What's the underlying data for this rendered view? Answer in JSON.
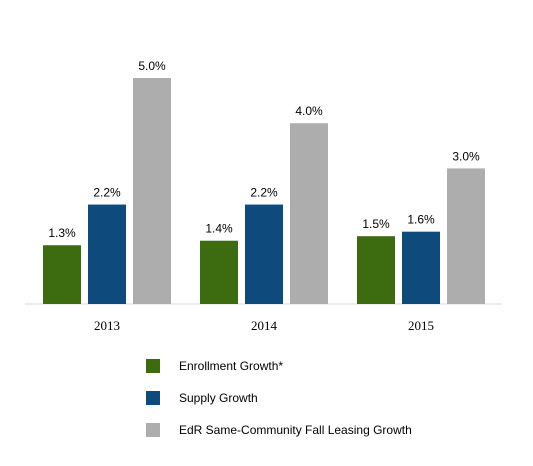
{
  "chart_data": {
    "type": "bar",
    "categories": [
      "2013",
      "2014",
      "2015"
    ],
    "series": [
      {
        "name": "Enrollment Growth*",
        "values": [
          1.3,
          1.4,
          1.5
        ],
        "labels": [
          "1.3%",
          "1.4%",
          "1.5%"
        ],
        "color": "#3d6b0f"
      },
      {
        "name": "Supply Growth",
        "values": [
          2.2,
          2.2,
          1.6
        ],
        "labels": [
          "2.2%",
          "2.2%",
          "1.6%"
        ],
        "color": "#0f4a7d"
      },
      {
        "name": "EdR Same-Community Fall Leasing Growth",
        "values": [
          5.0,
          4.0,
          3.0
        ],
        "labels": [
          "5.0%",
          "4.0%",
          "3.0%"
        ],
        "color": "#adadad"
      }
    ],
    "ylim": [
      0,
      5.0
    ],
    "grid": false,
    "legend_position": "bottom"
  }
}
